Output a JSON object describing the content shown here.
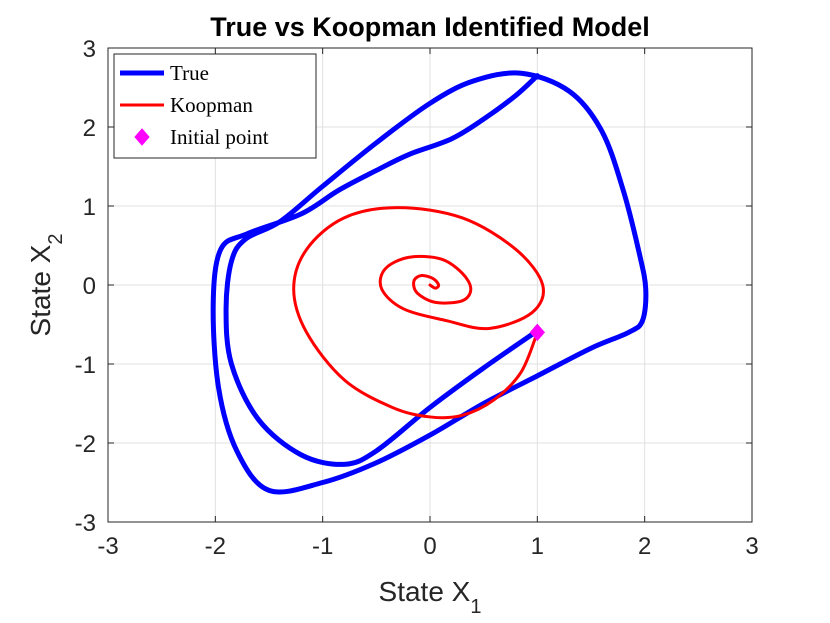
{
  "chart_data": {
    "type": "line",
    "title": "True vs Koopman Identified Model",
    "xlabel": "State X",
    "xlabel_subscript": "1",
    "ylabel": "State X",
    "ylabel_subscript": "2",
    "xlim": [
      -3,
      3
    ],
    "ylim": [
      -3,
      3
    ],
    "xticks": [
      -3,
      -2,
      -1,
      0,
      1,
      2,
      3
    ],
    "yticks": [
      -3,
      -2,
      -1,
      0,
      1,
      2,
      3
    ],
    "xtick_labels": [
      "-3",
      "-2",
      "-1",
      "0",
      "1",
      "2",
      "3"
    ],
    "ytick_labels": [
      "-3",
      "-2",
      "-1",
      "0",
      "1",
      "2",
      "3"
    ],
    "grid": true,
    "legend_position": "top-left",
    "series": [
      {
        "name": "True",
        "color": "#0000ff",
        "style": "thick-line",
        "x": [
          1.0,
          0.5,
          0.0,
          -0.5,
          -0.8,
          -1.2,
          -1.6,
          -1.85,
          -1.9,
          -1.85,
          -1.72,
          -1.4,
          -1.0,
          -0.5,
          0.0,
          0.4,
          0.85,
          1.3,
          1.6,
          1.8,
          1.95,
          2.01,
          1.98,
          1.85,
          1.5,
          1.0,
          0.5,
          0.0,
          -0.5,
          -1.0,
          -1.5,
          -1.8,
          -1.97,
          -2.02,
          -1.95,
          -1.7,
          -1.2,
          -0.85,
          -0.5,
          -0.2,
          0.2,
          0.5,
          0.8,
          1.0
        ],
        "y": [
          -0.58,
          -1.05,
          -1.55,
          -2.1,
          -2.27,
          -2.15,
          -1.7,
          -1.0,
          -0.3,
          0.3,
          0.58,
          0.8,
          1.25,
          1.8,
          2.3,
          2.58,
          2.68,
          2.45,
          1.95,
          1.2,
          0.4,
          -0.05,
          -0.45,
          -0.6,
          -0.8,
          -1.15,
          -1.5,
          -1.9,
          -2.25,
          -2.5,
          -2.6,
          -2.1,
          -1.3,
          -0.25,
          0.45,
          0.65,
          0.9,
          1.2,
          1.45,
          1.65,
          1.85,
          2.1,
          2.4,
          2.65
        ]
      },
      {
        "name": "Koopman",
        "color": "#ff0000",
        "style": "line",
        "x": [
          1.0,
          0.85,
          0.6,
          0.3,
          0.0,
          -0.35,
          -0.8,
          -1.15,
          -1.27,
          -1.15,
          -0.8,
          -0.3,
          0.3,
          0.8,
          1.05,
          0.95,
          0.55,
          0.15,
          -0.25,
          -0.45,
          -0.42,
          -0.2,
          0.1,
          0.3,
          0.38,
          0.3,
          0.05,
          -0.12,
          -0.15,
          -0.08,
          0.03,
          0.08,
          0.05,
          0.0
        ],
        "y": [
          -0.6,
          -1.1,
          -1.45,
          -1.65,
          -1.67,
          -1.55,
          -1.2,
          -0.6,
          -0.05,
          0.45,
          0.85,
          0.98,
          0.85,
          0.45,
          0.0,
          -0.35,
          -0.55,
          -0.45,
          -0.3,
          -0.05,
          0.2,
          0.35,
          0.33,
          0.15,
          -0.05,
          -0.2,
          -0.22,
          -0.1,
          0.05,
          0.12,
          0.08,
          0.0,
          -0.04,
          0.0
        ]
      },
      {
        "name": "Initial point",
        "color": "#ff00ff",
        "style": "marker-diamond",
        "x": [
          1.0
        ],
        "y": [
          -0.6
        ]
      }
    ]
  }
}
